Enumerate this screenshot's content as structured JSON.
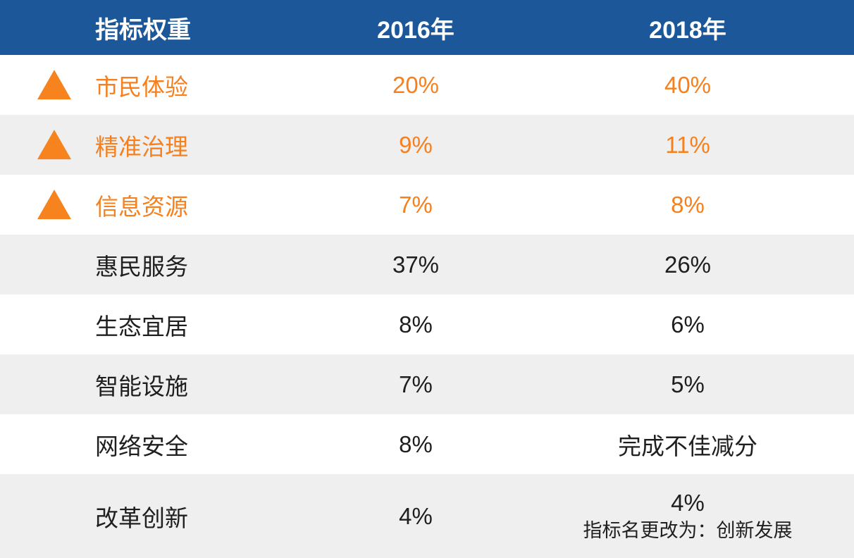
{
  "chart_data": {
    "type": "table",
    "title": "指标权重",
    "columns": [
      "指标权重",
      "2016年",
      "2018年"
    ],
    "rows": [
      {
        "name": "市民体验",
        "y2016": "20%",
        "y2018": "40%",
        "trend": "up",
        "highlighted": true
      },
      {
        "name": "精准治理",
        "y2016": "9%",
        "y2018": "11%",
        "trend": "up",
        "highlighted": true
      },
      {
        "name": "信息资源",
        "y2016": "7%",
        "y2018": "8%",
        "trend": "up",
        "highlighted": true
      },
      {
        "name": "惠民服务",
        "y2016": "37%",
        "y2018": "26%"
      },
      {
        "name": "生态宜居",
        "y2016": "8%",
        "y2018": "6%"
      },
      {
        "name": "智能设施",
        "y2016": "7%",
        "y2018": "5%"
      },
      {
        "name": "网络安全",
        "y2016": "8%",
        "y2018": "完成不佳减分"
      },
      {
        "name": "改革创新",
        "y2016": "4%",
        "y2018": "4%",
        "note": "指标名更改为：创新发展"
      }
    ],
    "layout": {
      "striped": true,
      "header_position": "top"
    },
    "colors": {
      "header_bg": "#1c5899",
      "header_text": "#ffffff",
      "stripe_bg": "#efefef",
      "accent_orange": "#f6801e",
      "triangle_orange": "#f6831d",
      "body_text": "#1f1f1f"
    }
  }
}
